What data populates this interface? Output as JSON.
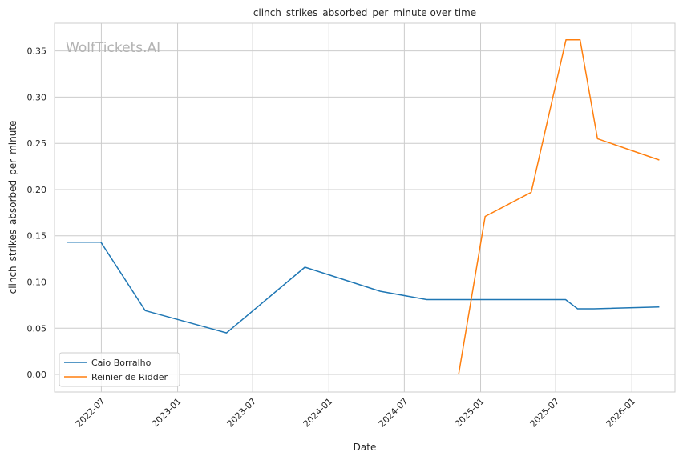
{
  "chart_data": {
    "type": "line",
    "title": "clinch_strikes_absorbed_per_minute over time",
    "xlabel": "Date",
    "ylabel": "clinch_strikes_absorbed_per_minute",
    "watermark": "WolfTickets.AI",
    "x_ticks": [
      "2022-07",
      "2023-01",
      "2023-07",
      "2024-01",
      "2024-07",
      "2025-01",
      "2025-07",
      "2026-01"
    ],
    "y_ticks": [
      "0.00",
      "0.05",
      "0.10",
      "0.15",
      "0.20",
      "0.25",
      "0.30",
      "0.35"
    ],
    "xlim": [
      "2022-03-10",
      "2026-04-15"
    ],
    "ylim": [
      -0.019,
      0.38
    ],
    "grid": true,
    "legend_position": "lower-left",
    "series": [
      {
        "name": "Caio Borralho",
        "color": "#1f77b4",
        "points": [
          {
            "x": "2022-04-10",
            "y": 0.143
          },
          {
            "x": "2022-06-30",
            "y": 0.143
          },
          {
            "x": "2022-10-15",
            "y": 0.069
          },
          {
            "x": "2023-04-29",
            "y": 0.045
          },
          {
            "x": "2023-11-04",
            "y": 0.116
          },
          {
            "x": "2024-05-04",
            "y": 0.09
          },
          {
            "x": "2024-08-24",
            "y": 0.081
          },
          {
            "x": "2025-07-25",
            "y": 0.081
          },
          {
            "x": "2025-08-23",
            "y": 0.071
          },
          {
            "x": "2025-10-01",
            "y": 0.071
          },
          {
            "x": "2026-03-08",
            "y": 0.073
          }
        ]
      },
      {
        "name": "Reinier de Ridder",
        "color": "#ff7f0e",
        "points": [
          {
            "x": "2024-11-09",
            "y": 0.0
          },
          {
            "x": "2025-01-12",
            "y": 0.171
          },
          {
            "x": "2025-05-03",
            "y": 0.197
          },
          {
            "x": "2025-07-26",
            "y": 0.362
          },
          {
            "x": "2025-08-29",
            "y": 0.362
          },
          {
            "x": "2025-10-10",
            "y": 0.255
          },
          {
            "x": "2026-03-08",
            "y": 0.232
          }
        ]
      }
    ]
  }
}
